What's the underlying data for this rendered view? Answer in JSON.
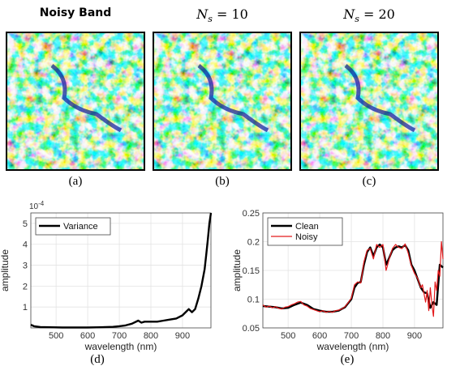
{
  "panels": [
    {
      "title": "Noisy Band",
      "caption": "(a)"
    },
    {
      "title_base": "N",
      "title_sub": "s",
      "title_rest": " = 10",
      "caption": "(b)"
    },
    {
      "title_base": "N",
      "title_sub": "s",
      "title_rest": " = 20",
      "caption": "(c)"
    }
  ],
  "chart_data": [
    {
      "type": "line",
      "caption": "(d)",
      "xlabel": "wavelength (nm)",
      "ylabel": "amplitude",
      "exponent_label": "10",
      "exponent_power": "-4",
      "xlim": [
        420,
        990
      ],
      "ylim": [
        0,
        5.5
      ],
      "xticks": [
        500,
        600,
        700,
        800,
        900
      ],
      "yticks": [
        1,
        2,
        3,
        4,
        5
      ],
      "legend_position": "top-left",
      "grid": true,
      "series": [
        {
          "name": "Variance",
          "color": "#000000",
          "x": [
            420,
            430,
            450,
            480,
            520,
            560,
            600,
            640,
            680,
            700,
            720,
            740,
            760,
            770,
            780,
            800,
            820,
            840,
            860,
            880,
            900,
            910,
            920,
            930,
            940,
            950,
            960,
            970,
            975,
            980,
            985,
            990
          ],
          "y": [
            0.15,
            0.08,
            0.04,
            0.03,
            0.02,
            0.02,
            0.02,
            0.03,
            0.05,
            0.08,
            0.12,
            0.2,
            0.35,
            0.25,
            0.3,
            0.3,
            0.3,
            0.35,
            0.4,
            0.45,
            0.6,
            0.75,
            0.9,
            0.75,
            0.9,
            1.4,
            2.0,
            2.8,
            3.5,
            4.2,
            5.0,
            5.5
          ]
        }
      ]
    },
    {
      "type": "line",
      "caption": "(e)",
      "xlabel": "wavelength (nm)",
      "ylabel": "amplitude",
      "xlim": [
        420,
        990
      ],
      "ylim": [
        0.05,
        0.25
      ],
      "xticks": [
        500,
        600,
        700,
        800,
        900
      ],
      "yticks": [
        0.05,
        0.1,
        0.15,
        0.2,
        0.25
      ],
      "legend_position": "top-left",
      "grid": true,
      "series": [
        {
          "name": "Clean",
          "color": "#000000",
          "x": [
            420,
            440,
            460,
            480,
            500,
            520,
            540,
            560,
            580,
            600,
            620,
            640,
            660,
            680,
            700,
            710,
            720,
            730,
            740,
            750,
            760,
            770,
            780,
            790,
            800,
            810,
            820,
            830,
            840,
            850,
            860,
            870,
            880,
            890,
            900,
            910,
            920,
            930,
            940,
            950,
            960,
            970,
            980,
            990
          ],
          "y": [
            0.088,
            0.087,
            0.086,
            0.084,
            0.085,
            0.09,
            0.094,
            0.09,
            0.083,
            0.08,
            0.078,
            0.078,
            0.08,
            0.086,
            0.1,
            0.12,
            0.128,
            0.13,
            0.16,
            0.182,
            0.19,
            0.175,
            0.19,
            0.195,
            0.19,
            0.16,
            0.172,
            0.185,
            0.19,
            0.192,
            0.19,
            0.194,
            0.185,
            0.16,
            0.15,
            0.135,
            0.12,
            0.112,
            0.11,
            0.085,
            0.095,
            0.09,
            0.16,
            0.155
          ]
        },
        {
          "name": "Noisy",
          "color": "#e41a1c",
          "x": [
            420,
            430,
            440,
            450,
            460,
            470,
            480,
            490,
            500,
            510,
            520,
            530,
            540,
            550,
            560,
            570,
            580,
            590,
            600,
            610,
            620,
            630,
            640,
            650,
            660,
            670,
            680,
            690,
            700,
            710,
            720,
            730,
            740,
            750,
            760,
            770,
            780,
            790,
            800,
            810,
            820,
            830,
            840,
            850,
            860,
            870,
            880,
            890,
            900,
            910,
            920,
            925,
            930,
            935,
            940,
            945,
            950,
            955,
            960,
            965,
            970,
            975,
            980,
            985,
            990
          ],
          "y": [
            0.09,
            0.086,
            0.088,
            0.085,
            0.087,
            0.084,
            0.083,
            0.086,
            0.087,
            0.09,
            0.092,
            0.095,
            0.096,
            0.09,
            0.088,
            0.084,
            0.082,
            0.08,
            0.078,
            0.08,
            0.077,
            0.079,
            0.077,
            0.08,
            0.081,
            0.083,
            0.087,
            0.094,
            0.102,
            0.125,
            0.13,
            0.128,
            0.165,
            0.185,
            0.188,
            0.17,
            0.195,
            0.19,
            0.195,
            0.15,
            0.17,
            0.188,
            0.195,
            0.19,
            0.188,
            0.196,
            0.18,
            0.158,
            0.145,
            0.136,
            0.12,
            0.125,
            0.11,
            0.095,
            0.115,
            0.08,
            0.12,
            0.09,
            0.07,
            0.13,
            0.115,
            0.15,
            0.14,
            0.2,
            0.17
          ]
        }
      ]
    }
  ]
}
